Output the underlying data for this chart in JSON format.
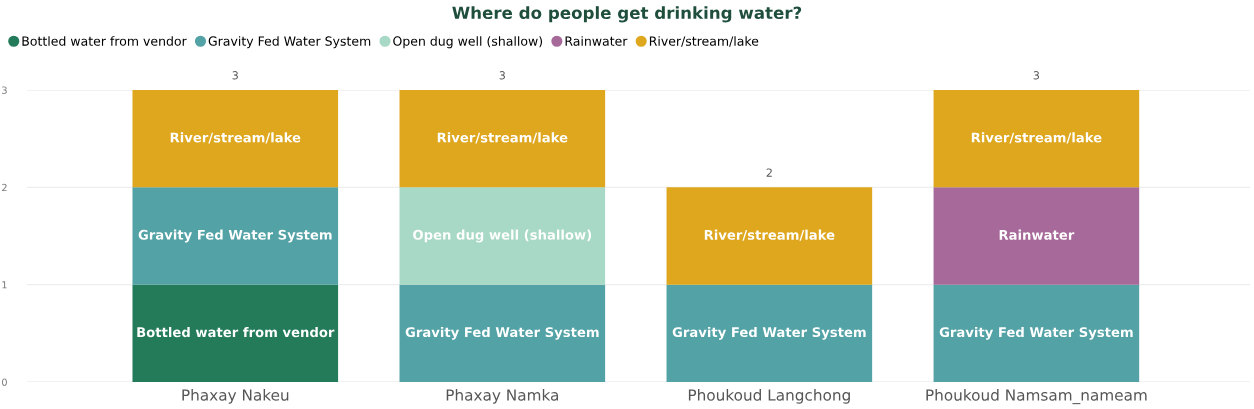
{
  "chart_data": {
    "type": "bar",
    "stacked": true,
    "title": "Where do people get drinking water?",
    "categories": [
      "Phaxay Nakeu",
      "Phaxay Namka",
      "Phoukoud Langchong",
      "Phoukoud Namsam_nameam"
    ],
    "series": [
      {
        "name": "Bottled water from vendor",
        "color": "#237b5a",
        "values": [
          1,
          null,
          null,
          null
        ]
      },
      {
        "name": "Gravity Fed Water System",
        "color": "#53a2a6",
        "values": [
          1,
          1,
          1,
          1
        ]
      },
      {
        "name": "Open dug well (shallow)",
        "color": "#a8d8c6",
        "values": [
          null,
          1,
          null,
          null
        ]
      },
      {
        "name": "Rainwater",
        "color": "#a66999",
        "values": [
          null,
          null,
          null,
          1
        ]
      },
      {
        "name": "River/stream/lake",
        "color": "#dea71e",
        "values": [
          1,
          1,
          1,
          1
        ]
      }
    ],
    "totals": [
      "3",
      "3",
      "2",
      "3"
    ],
    "ylim": [
      0,
      3
    ],
    "yticks": [
      0,
      1,
      2,
      3
    ],
    "grid": "y",
    "legend": "top left"
  }
}
